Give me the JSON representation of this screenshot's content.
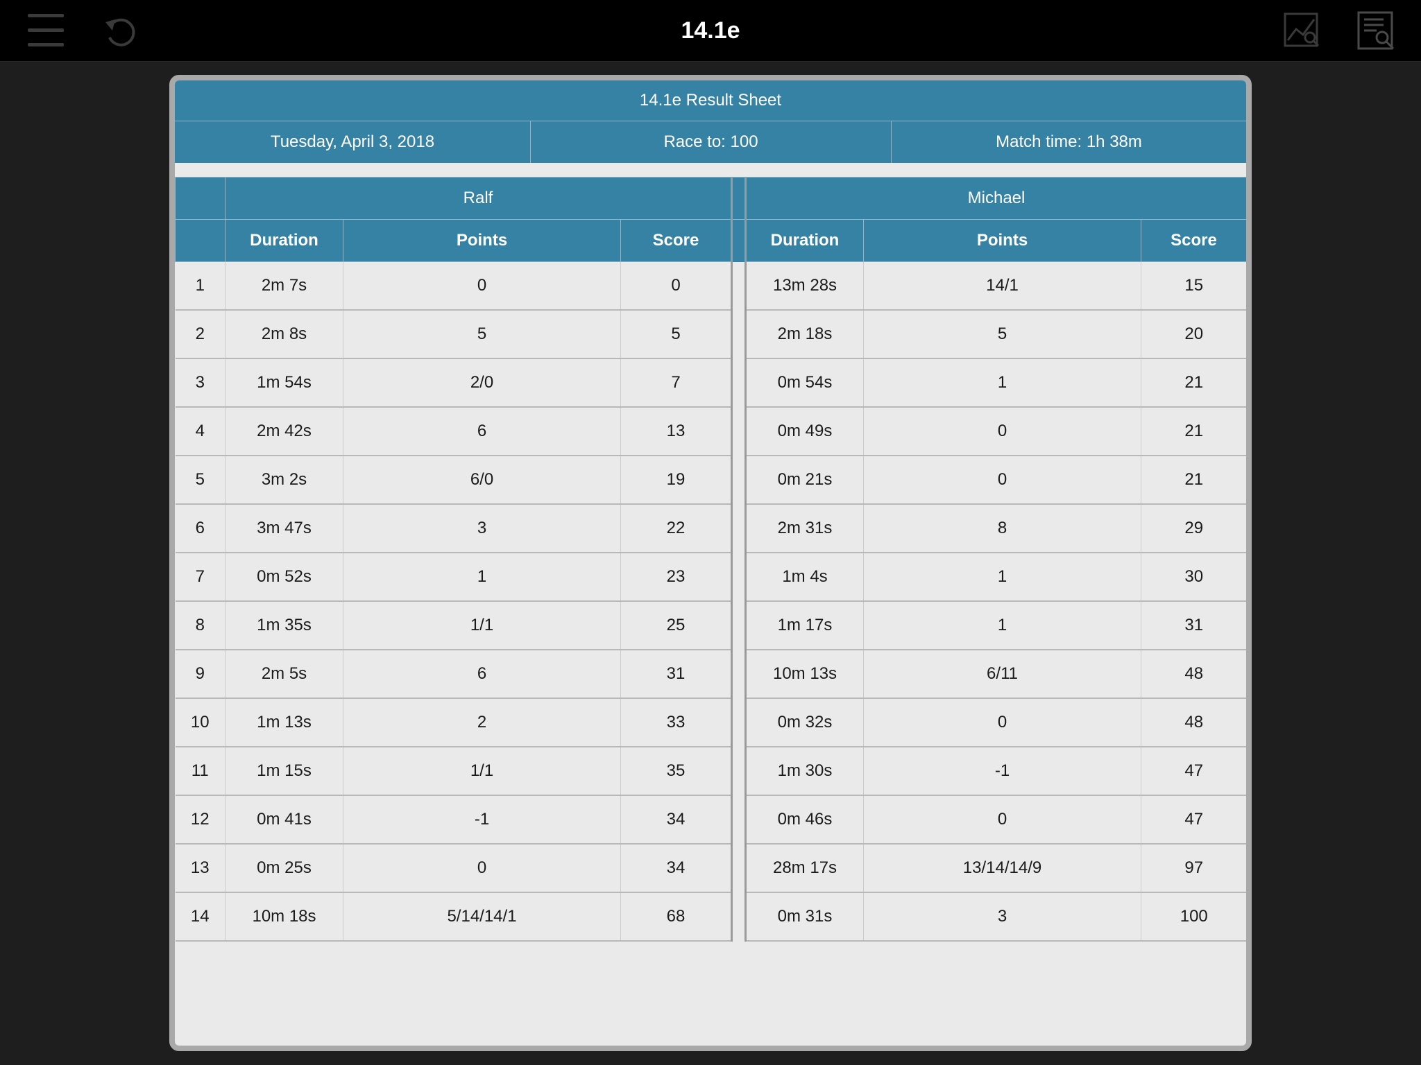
{
  "header": {
    "title": "14.1e",
    "icons": [
      "menu-icon",
      "undo-icon",
      "chart-icon",
      "report-search-icon"
    ]
  },
  "sheet": {
    "title": "14.1e Result Sheet",
    "date": "Tuesday, April 3, 2018",
    "race_to": "Race to: 100",
    "match_time": "Match time: 1h 38m"
  },
  "players": {
    "left": "Ralf",
    "right": "Michael"
  },
  "columns": {
    "duration": "Duration",
    "points": "Points",
    "score": "Score"
  },
  "rows": [
    {
      "n": "1",
      "l_dur": "2m 7s",
      "l_pts": "0",
      "l_score": "0",
      "r_dur": "13m 28s",
      "r_pts": "14/1",
      "r_score": "15"
    },
    {
      "n": "2",
      "l_dur": "2m 8s",
      "l_pts": "5",
      "l_score": "5",
      "r_dur": "2m 18s",
      "r_pts": "5",
      "r_score": "20"
    },
    {
      "n": "3",
      "l_dur": "1m 54s",
      "l_pts": "2/0",
      "l_score": "7",
      "r_dur": "0m 54s",
      "r_pts": "1",
      "r_score": "21"
    },
    {
      "n": "4",
      "l_dur": "2m 42s",
      "l_pts": "6",
      "l_score": "13",
      "r_dur": "0m 49s",
      "r_pts": "0",
      "r_score": "21"
    },
    {
      "n": "5",
      "l_dur": "3m 2s",
      "l_pts": "6/0",
      "l_score": "19",
      "r_dur": "0m 21s",
      "r_pts": "0",
      "r_score": "21"
    },
    {
      "n": "6",
      "l_dur": "3m 47s",
      "l_pts": "3",
      "l_score": "22",
      "r_dur": "2m 31s",
      "r_pts": "8",
      "r_score": "29"
    },
    {
      "n": "7",
      "l_dur": "0m 52s",
      "l_pts": "1",
      "l_score": "23",
      "r_dur": "1m 4s",
      "r_pts": "1",
      "r_score": "30"
    },
    {
      "n": "8",
      "l_dur": "1m 35s",
      "l_pts": "1/1",
      "l_score": "25",
      "r_dur": "1m 17s",
      "r_pts": "1",
      "r_score": "31"
    },
    {
      "n": "9",
      "l_dur": "2m 5s",
      "l_pts": "6",
      "l_score": "31",
      "r_dur": "10m 13s",
      "r_pts": "6/11",
      "r_score": "48"
    },
    {
      "n": "10",
      "l_dur": "1m 13s",
      "l_pts": "2",
      "l_score": "33",
      "r_dur": "0m 32s",
      "r_pts": "0",
      "r_score": "48"
    },
    {
      "n": "11",
      "l_dur": "1m 15s",
      "l_pts": "1/1",
      "l_score": "35",
      "r_dur": "1m 30s",
      "r_pts": "-1",
      "r_score": "47"
    },
    {
      "n": "12",
      "l_dur": "0m 41s",
      "l_pts": "-1",
      "l_score": "34",
      "r_dur": "0m 46s",
      "r_pts": "0",
      "r_score": "47"
    },
    {
      "n": "13",
      "l_dur": "0m 25s",
      "l_pts": "0",
      "l_score": "34",
      "r_dur": "28m 17s",
      "r_pts": "13/14/14/9",
      "r_score": "97"
    },
    {
      "n": "14",
      "l_dur": "10m 18s",
      "l_pts": "5/14/14/1",
      "l_score": "68",
      "r_dur": "0m 31s",
      "r_pts": "3",
      "r_score": "100"
    }
  ],
  "colors": {
    "header_blue": "#3682a4",
    "background": "#1e1e1e",
    "topbar": "#000000",
    "row_bg": "#eaeaea"
  }
}
